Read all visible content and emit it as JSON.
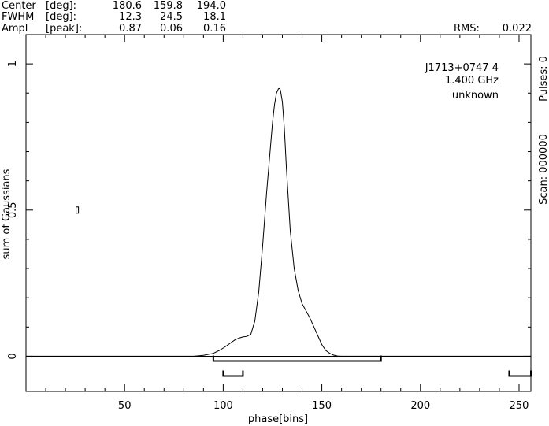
{
  "header": {
    "rows": [
      {
        "label": "Center",
        "unit": "[deg]:",
        "values": [
          "180.6",
          "159.8",
          "194.0"
        ]
      },
      {
        "label": "FWHM",
        "unit": "[deg]:",
        "values": [
          "12.3",
          "24.5",
          "18.1"
        ]
      },
      {
        "label": "Ampl",
        "unit": "[peak]:",
        "values": [
          "0.87",
          "0.06",
          "0.16"
        ]
      }
    ],
    "rms_label": "RMS:",
    "rms_value": "0.022"
  },
  "info": {
    "line1": "J1713+0747 4",
    "line2": "1.400 GHz",
    "line3": "unknown"
  },
  "right_axis": {
    "scan_text": "Scan: 000000",
    "pulses_text": "Pulses: 0"
  },
  "chart_data": {
    "type": "line",
    "title": "",
    "xlabel": "phase[bins]",
    "ylabel": "sum of Gaussians",
    "xlim": [
      0,
      256
    ],
    "ylim": [
      -0.12,
      1.1
    ],
    "x_ticks": [
      50,
      100,
      150,
      200,
      250
    ],
    "y_ticks": [
      0,
      0.5,
      1
    ],
    "x_tick_labels": [
      "50",
      "100",
      "150",
      "200",
      "250"
    ],
    "y_tick_labels": [
      "0",
      "0.5",
      "1"
    ],
    "grid": false,
    "series": [
      {
        "x": [
          0,
          85,
          90,
          95,
          98,
          100,
          102,
          104,
          106,
          108,
          110,
          112,
          114,
          116,
          118,
          120,
          122,
          124,
          125,
          126,
          127,
          128,
          128.5,
          129,
          130,
          131,
          132,
          134,
          136,
          138,
          140,
          142,
          144,
          146,
          148,
          150,
          152,
          154,
          156,
          158,
          160,
          256
        ],
        "y": [
          0,
          0,
          0.003,
          0.01,
          0.02,
          0.028,
          0.037,
          0.047,
          0.056,
          0.062,
          0.066,
          0.068,
          0.075,
          0.12,
          0.22,
          0.38,
          0.56,
          0.72,
          0.8,
          0.86,
          0.9,
          0.915,
          0.916,
          0.91,
          0.87,
          0.78,
          0.65,
          0.43,
          0.3,
          0.225,
          0.18,
          0.155,
          0.13,
          0.1,
          0.07,
          0.04,
          0.02,
          0.01,
          0.004,
          0.001,
          0,
          0
        ]
      }
    ],
    "brackets": [
      {
        "from": 95,
        "to": 180,
        "level": 1
      },
      {
        "from": 100,
        "to": 110,
        "level": 2
      },
      {
        "from": 245,
        "to": 256,
        "level": 2
      }
    ],
    "markers": [
      {
        "x": 26,
        "y": 0.5,
        "shape": "small-rectangle"
      }
    ]
  }
}
